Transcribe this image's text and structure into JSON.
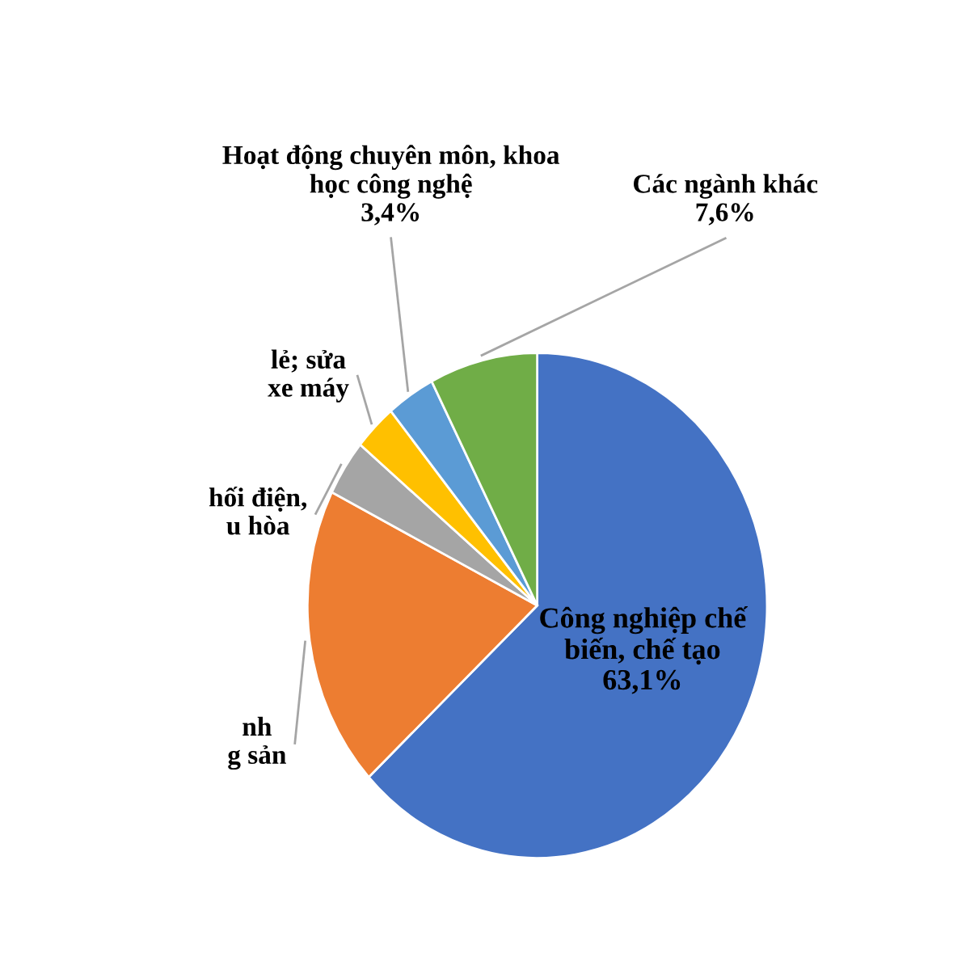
{
  "chart_data": {
    "type": "pie",
    "categories": [
      "Công nghiệp chế\nbiến, chế tạo",
      "nh\ng sản",
      "hối điện,\nu hòa",
      "lẻ; sửa\nxe máy",
      "Hoạt động chuyên môn, khoa\nhọc công nghệ",
      "Các ngành khác"
    ],
    "values": [
      63.1,
      19.3,
      3.6,
      3.0,
      3.4,
      7.6
    ],
    "value_labels": [
      "63,1%",
      null,
      null,
      null,
      "3,4%",
      "7,6%"
    ],
    "colors": [
      "#4472c4",
      "#ed7d31",
      "#a5a5a5",
      "#ffc000",
      "#5b9bd5",
      "#70ad47"
    ],
    "legend": false
  }
}
